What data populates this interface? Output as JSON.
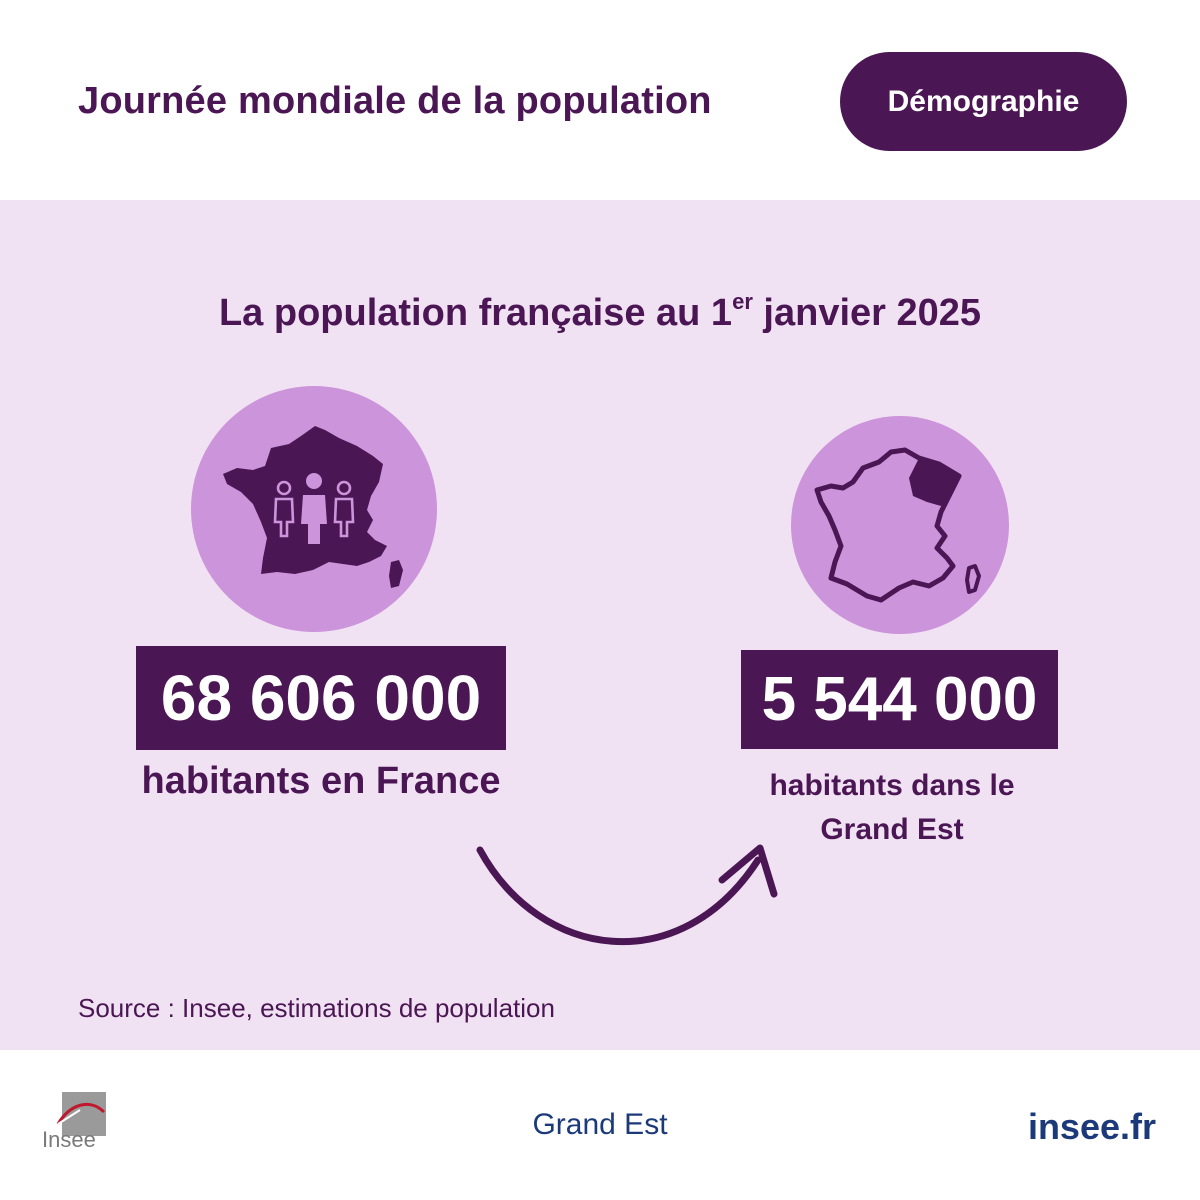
{
  "header": {
    "title": "Journée mondiale de la population",
    "tag": "Démographie"
  },
  "main": {
    "subtitle_prefix": "La population française au 1",
    "subtitle_sup": "er",
    "subtitle_suffix": " janvier 2025",
    "france": {
      "value": "68 606 000",
      "caption": "habitants en France",
      "icon": "france-map-people-icon"
    },
    "grand_est": {
      "value": "5 544 000",
      "caption_line1": "habitants dans le",
      "caption_line2": "Grand Est",
      "icon": "france-outline-grand-est-icon"
    },
    "source": "Source : Insee, estimations de population"
  },
  "footer": {
    "logo_text": "Insee",
    "region": "Grand Est",
    "site": "insee.fr"
  },
  "colors": {
    "primary": "#4b1654",
    "panel_bg": "#f1e2f3",
    "circle": "#cc94da",
    "footer_text": "#1c3a7a"
  }
}
